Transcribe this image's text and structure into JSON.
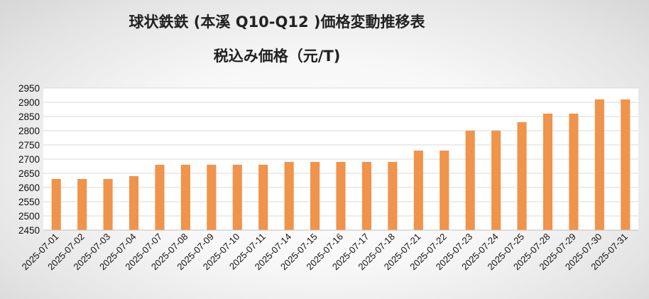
{
  "chart_data": {
    "type": "bar",
    "title": "球状鉄鉄 (本溪 Q10-Q12 )価格変動推移表",
    "subtitle": "税込み価格（元/T)",
    "xlabel": "",
    "ylabel": "",
    "ylim": [
      2450,
      2950
    ],
    "yticks": [
      2450,
      2500,
      2550,
      2600,
      2650,
      2700,
      2750,
      2800,
      2850,
      2900,
      2950
    ],
    "grid": true,
    "legend": "none",
    "bar_color": "#f0934b",
    "categories": [
      "2025-07-01",
      "2025-07-02",
      "2025-07-03",
      "2025-07-04",
      "2025-07-07",
      "2025-07-08",
      "2025-07-09",
      "2025-07-10",
      "2025-07-11",
      "2025-07-14",
      "2025-07-15",
      "2025-07-16",
      "2025-07-17",
      "2025-07-18",
      "2025-07-21",
      "2025-07-22",
      "2025-07-23",
      "2025-07-24",
      "2025-07-25",
      "2025-07-28",
      "2025-07-29",
      "2025-07-30",
      "2025-07-31"
    ],
    "values": [
      2630,
      2630,
      2630,
      2640,
      2680,
      2680,
      2680,
      2680,
      2680,
      2690,
      2690,
      2690,
      2690,
      2690,
      2730,
      2730,
      2800,
      2800,
      2830,
      2860,
      2860,
      2910,
      2910
    ]
  }
}
